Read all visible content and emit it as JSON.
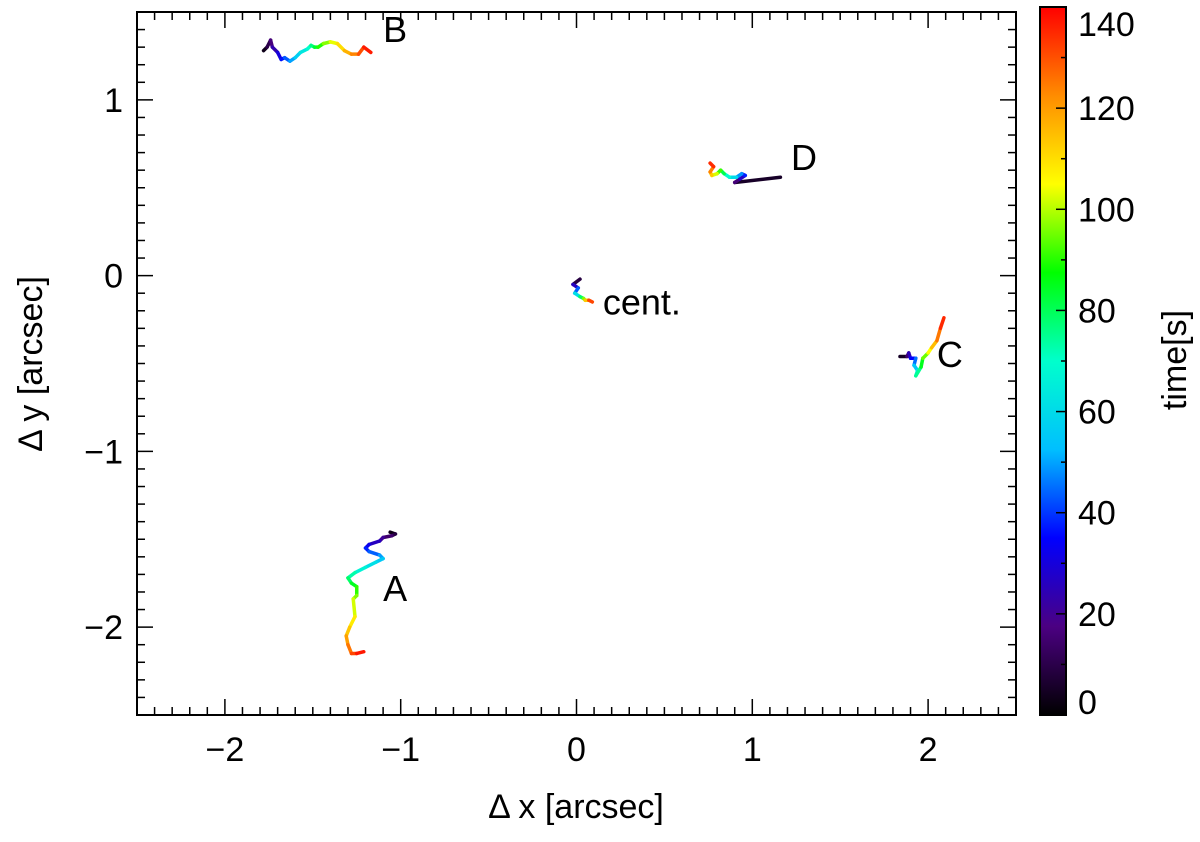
{
  "chart_data": {
    "type": "line",
    "title": "",
    "xlabel": "Δ x [arcsec]",
    "ylabel": "Δ y [arcsec]",
    "xlim": [
      -2.5,
      2.5
    ],
    "ylim": [
      -2.5,
      1.5
    ],
    "xticks": [
      -2,
      -1,
      0,
      1,
      2
    ],
    "xtick_labels": [
      "−2",
      "−1",
      "0",
      "1",
      "2"
    ],
    "yticks": [
      -2,
      -1,
      0,
      1
    ],
    "ytick_labels": [
      "−2",
      "−1",
      "0",
      "1"
    ],
    "grid": false,
    "colorbar": {
      "label": "time[s]",
      "range": [
        0,
        140
      ],
      "ticks": [
        0,
        20,
        40,
        60,
        80,
        100,
        120,
        140
      ],
      "tick_labels": [
        "0",
        "20",
        "40",
        "60",
        "80",
        "100",
        "120",
        "140"
      ],
      "colormap": "rainbow",
      "colors": [
        "#000000",
        "#4b0082",
        "#0000ff",
        "#00bfff",
        "#00ffcc",
        "#00ff00",
        "#ffff00",
        "#ff8c00",
        "#ff0000"
      ]
    },
    "series": [
      {
        "name": "A",
        "label_pos": [
          -1.1,
          -1.85
        ],
        "points": [
          [
            -1.06,
            -1.46
          ],
          [
            -1.03,
            -1.47
          ],
          [
            -1.05,
            -1.48
          ],
          [
            -1.1,
            -1.49
          ],
          [
            -1.12,
            -1.51
          ],
          [
            -1.18,
            -1.53
          ],
          [
            -1.2,
            -1.55
          ],
          [
            -1.18,
            -1.57
          ],
          [
            -1.12,
            -1.59
          ],
          [
            -1.1,
            -1.61
          ],
          [
            -1.14,
            -1.63
          ],
          [
            -1.2,
            -1.66
          ],
          [
            -1.26,
            -1.69
          ],
          [
            -1.3,
            -1.72
          ],
          [
            -1.28,
            -1.75
          ],
          [
            -1.25,
            -1.77
          ],
          [
            -1.25,
            -1.82
          ],
          [
            -1.27,
            -1.84
          ],
          [
            -1.26,
            -1.94
          ],
          [
            -1.29,
            -2.0
          ],
          [
            -1.31,
            -2.05
          ],
          [
            -1.3,
            -2.1
          ],
          [
            -1.28,
            -2.15
          ],
          [
            -1.25,
            -2.15
          ],
          [
            -1.21,
            -2.14
          ]
        ]
      },
      {
        "name": "B",
        "label_pos": [
          -1.1,
          1.33
        ],
        "points": [
          [
            -1.78,
            1.28
          ],
          [
            -1.76,
            1.3
          ],
          [
            -1.74,
            1.34
          ],
          [
            -1.73,
            1.3
          ],
          [
            -1.7,
            1.27
          ],
          [
            -1.68,
            1.23
          ],
          [
            -1.66,
            1.24
          ],
          [
            -1.63,
            1.22
          ],
          [
            -1.6,
            1.24
          ],
          [
            -1.57,
            1.27
          ],
          [
            -1.53,
            1.29
          ],
          [
            -1.51,
            1.31
          ],
          [
            -1.49,
            1.3
          ],
          [
            -1.47,
            1.3
          ],
          [
            -1.44,
            1.32
          ],
          [
            -1.4,
            1.33
          ],
          [
            -1.36,
            1.32
          ],
          [
            -1.32,
            1.28
          ],
          [
            -1.28,
            1.26
          ],
          [
            -1.24,
            1.26
          ],
          [
            -1.21,
            1.3
          ],
          [
            -1.17,
            1.27
          ]
        ]
      },
      {
        "name": "C",
        "label_pos": [
          2.05,
          -0.52
        ],
        "points": [
          [
            1.84,
            -0.46
          ],
          [
            1.88,
            -0.46
          ],
          [
            1.89,
            -0.44
          ],
          [
            1.9,
            -0.47
          ],
          [
            1.93,
            -0.47
          ],
          [
            1.92,
            -0.51
          ],
          [
            1.94,
            -0.54
          ],
          [
            1.93,
            -0.57
          ],
          [
            1.96,
            -0.52
          ],
          [
            1.97,
            -0.47
          ],
          [
            2.0,
            -0.44
          ],
          [
            2.02,
            -0.41
          ],
          [
            2.05,
            -0.37
          ],
          [
            2.07,
            -0.3
          ],
          [
            2.09,
            -0.24
          ]
        ]
      },
      {
        "name": "D",
        "label_pos": [
          1.22,
          0.6
        ],
        "points": [
          [
            1.16,
            0.56
          ],
          [
            0.9,
            0.53
          ],
          [
            0.93,
            0.55
          ],
          [
            0.96,
            0.57
          ],
          [
            0.94,
            0.58
          ],
          [
            0.91,
            0.56
          ],
          [
            0.87,
            0.56
          ],
          [
            0.84,
            0.58
          ],
          [
            0.82,
            0.6
          ],
          [
            0.8,
            0.58
          ],
          [
            0.77,
            0.57
          ],
          [
            0.76,
            0.59
          ],
          [
            0.78,
            0.62
          ],
          [
            0.76,
            0.64
          ]
        ]
      },
      {
        "name": "cent.",
        "label_pos": [
          0.15,
          -0.22
        ],
        "points": [
          [
            0.02,
            -0.02
          ],
          [
            -0.02,
            -0.05
          ],
          [
            0.01,
            -0.07
          ],
          [
            -0.01,
            -0.1
          ],
          [
            0.02,
            -0.12
          ],
          [
            0.04,
            -0.13
          ],
          [
            0.05,
            -0.14
          ],
          [
            0.07,
            -0.14
          ],
          [
            0.09,
            -0.15
          ]
        ]
      }
    ]
  }
}
